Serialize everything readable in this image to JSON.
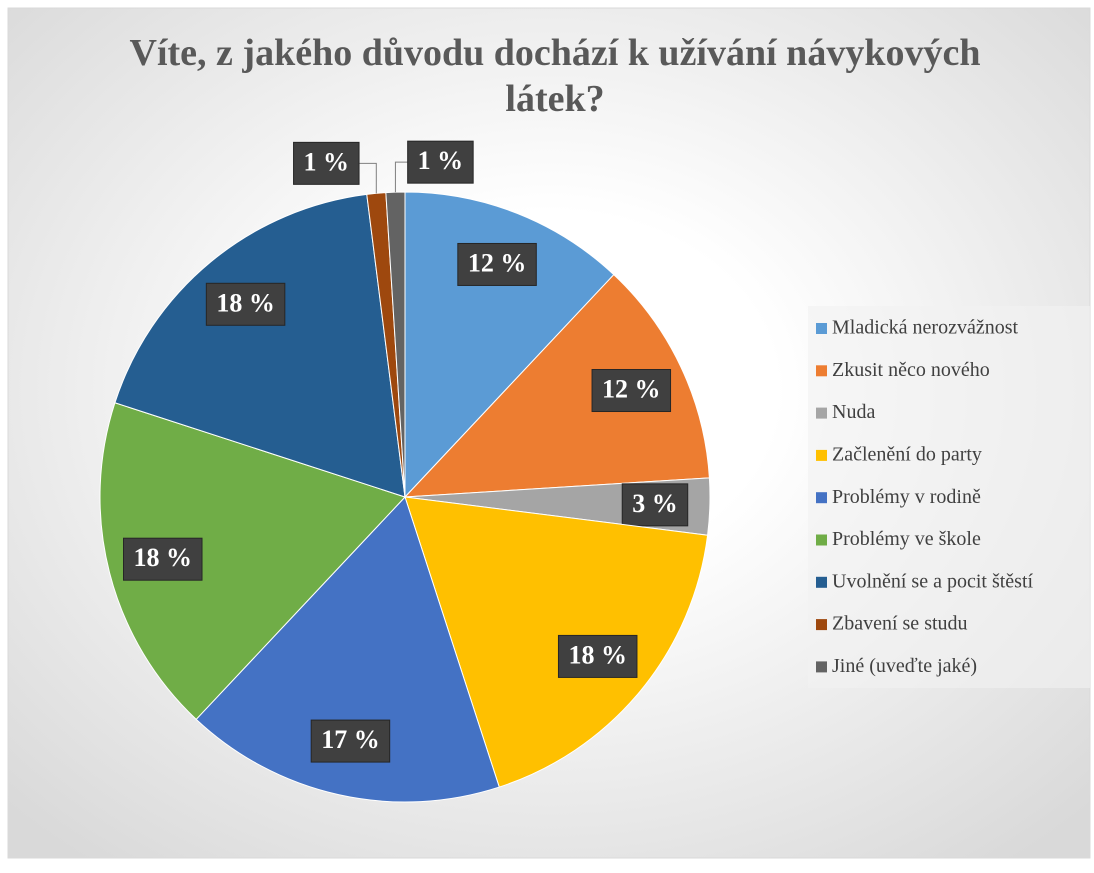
{
  "chart_data": {
    "type": "pie",
    "title": "Víte, z jakého důvodu dochází k užívání návykových látek?",
    "categories": [
      "Mladická nerozvážnost",
      "Zkusit něco nového",
      "Nuda",
      "Začlenění do party",
      "Problémy v rodině",
      "Problémy ve škole",
      "Uvolnění se a pocit štěstí",
      "Zbavení se studu",
      "Jiné (uveďte jaké)"
    ],
    "values": [
      12,
      12,
      3,
      18,
      17,
      18,
      18,
      1,
      1
    ],
    "value_labels": [
      "12 %",
      "12 %",
      "3 %",
      "18 %",
      "17 %",
      "18 %",
      "18 %",
      "1 %",
      "1 %"
    ],
    "colors": [
      "#5b9bd5",
      "#ed7d31",
      "#a5a5a5",
      "#ffc000",
      "#4472c4",
      "#70ad47",
      "#255e91",
      "#9e480e",
      "#636363"
    ],
    "legend": "right"
  }
}
